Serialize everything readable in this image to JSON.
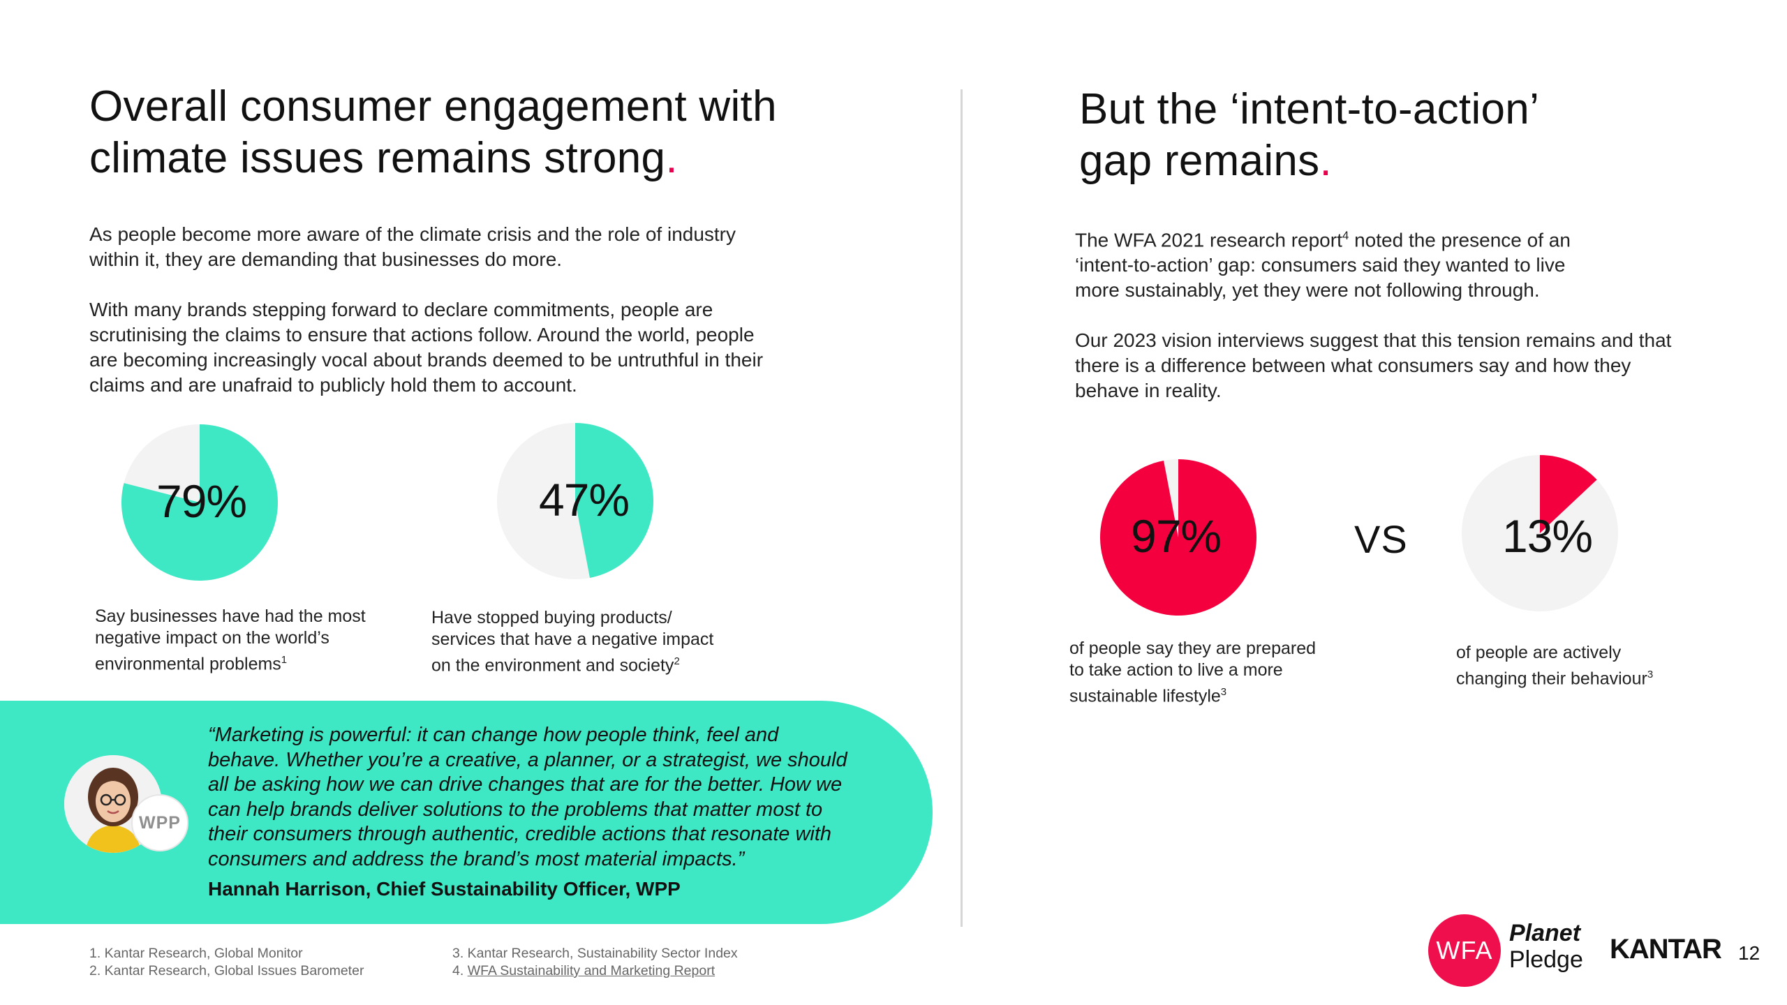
{
  "left": {
    "title_line1": "Overall consumer engagement with",
    "title_line2": "climate issues remains strong",
    "title_dot": ".",
    "para1_line1": "As people become more aware of the climate crisis and the role of industry",
    "para1_line2": "within it, they are demanding that businesses do more.",
    "para2_line1": "With many brands stepping forward to declare commitments, people are",
    "para2_line2": "scrutinising the claims to ensure that actions follow.  Around the world, people",
    "para2_line3": "are becoming increasingly vocal about brands deemed to be untruthful in their",
    "para2_line4": "claims and are unafraid to publicly hold them to account."
  },
  "right": {
    "title_line1": "But the ‘intent-to-action’",
    "title_line2": "gap remains",
    "title_dot": ".",
    "para1_line1_a": "The WFA 2021 research report",
    "para1_line1_sup": "4",
    "para1_line1_b": " noted the presence of an",
    "para1_line2": "‘intent-to-action’ gap:  consumers said they wanted to live",
    "para1_line3": "more sustainably, yet they were not following through.",
    "para2_line1": "Our 2023 vision interviews suggest that this tension remains and that",
    "para2_line2": "there is a difference between what consumers say and how they",
    "para2_line3": "behave in reality.",
    "vs_label": "VS"
  },
  "chart_data": [
    {
      "type": "pie",
      "value": 79,
      "value_label": "79%",
      "colors": {
        "fill": "#3fe8c4",
        "rest": "#f3f3f3"
      },
      "caption_line1": "Say businesses have had the most",
      "caption_line2": "negative impact on the world’s",
      "caption_line3": "environmental problems",
      "caption_sup": "1"
    },
    {
      "type": "pie",
      "value": 47,
      "value_label": "47%",
      "colors": {
        "fill": "#3fe8c4",
        "rest": "#f3f3f3"
      },
      "caption_line1": "Have stopped buying products/",
      "caption_line2": "services that have a negative impact",
      "caption_line3": "on the environment and society",
      "caption_sup": "2"
    },
    {
      "type": "pie",
      "value": 97,
      "value_label": "97%",
      "colors": {
        "fill": "#f5003f",
        "rest": "#f3f3f3"
      },
      "caption_line1": "of people say they are prepared",
      "caption_line2": "to take action to live a more",
      "caption_line3": "sustainable lifestyle",
      "caption_sup": "3"
    },
    {
      "type": "pie",
      "value": 13,
      "value_label": "13%",
      "colors": {
        "fill": "#f5003f",
        "rest": "#f3f3f3"
      },
      "caption_line1": "of people are actively",
      "caption_line2": "changing their behaviour",
      "caption_line3": "",
      "caption_sup": "3"
    }
  ],
  "quote": {
    "line1": "“Marketing is powerful: it can change how people think, feel and",
    "line2": "behave. Whether you’re a creative, a planner, or a strategist, we should",
    "line3": "all be asking how we can drive changes that are for the better. How we",
    "line4": "can help brands deliver solutions to the problems that matter most to",
    "line5": "their consumers through authentic, credible actions that resonate with",
    "line6": "consumers and address the brand’s most material impacts.”",
    "author": "Hannah Harrison, Chief Sustainability Officer, WPP",
    "badge": "WPP"
  },
  "footnotes": {
    "n1": "1. Kantar Research, Global Monitor",
    "n2": "2. Kantar Research, Global Issues Barometer",
    "n3": "3. Kantar Research, Sustainability Sector Index",
    "n4_prefix": "4. ",
    "n4_link": "WFA Sustainability and Marketing Report"
  },
  "branding": {
    "wfa": "WFA",
    "planet": "Planet",
    "pledge": "Pledge",
    "kantar": "KANTAR",
    "page_number": "12"
  },
  "colors": {
    "accent_pink": "#e8004c",
    "accent_green": "#3fe8c4",
    "accent_red": "#f5003f"
  }
}
